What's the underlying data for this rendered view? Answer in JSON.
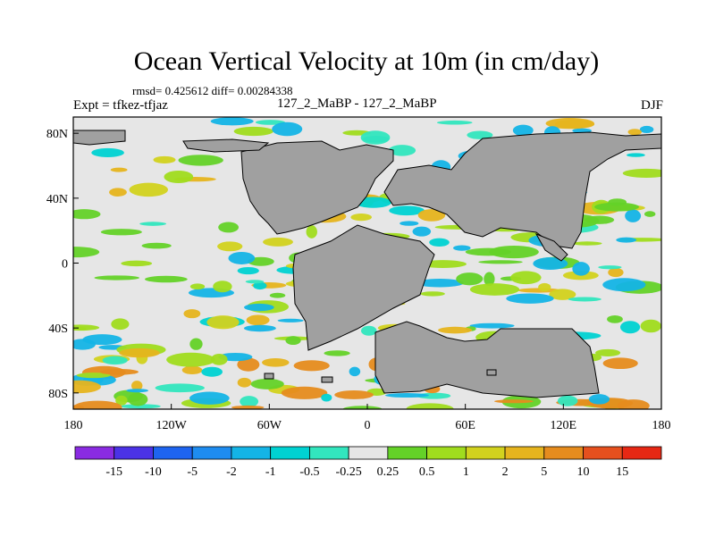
{
  "header": {
    "title": "Ocean Vertical Velocity at 10m (in cm/day)",
    "stats": "rmsd= 0.425612 diff= 0.00284338",
    "expt": "Expt = tfkez-tfjaz",
    "expname": "127_2_MaBP - 127_2_MaBP",
    "season": "DJF"
  },
  "map": {
    "lat_range": [
      -90,
      90
    ],
    "lon_range": [
      -180,
      180
    ],
    "land_color": "#a0a0a0",
    "ocean_background": "#e6e6e6",
    "lat_ticks": [
      {
        "value": 80,
        "label": "80N"
      },
      {
        "value": 40,
        "label": "40N"
      },
      {
        "value": 0,
        "label": "0"
      },
      {
        "value": -40,
        "label": "40S"
      },
      {
        "value": -80,
        "label": "80S"
      }
    ],
    "lon_ticks": [
      {
        "value": -180,
        "label": "180"
      },
      {
        "value": -120,
        "label": "120W"
      },
      {
        "value": -60,
        "label": "60W"
      },
      {
        "value": 0,
        "label": "0"
      },
      {
        "value": 60,
        "label": "60E"
      },
      {
        "value": 120,
        "label": "120E"
      },
      {
        "value": 180,
        "label": "180"
      }
    ]
  },
  "colorbar": {
    "colors": [
      "#8a2be2",
      "#4b32e6",
      "#1e64f0",
      "#1e8cf0",
      "#14b4e6",
      "#00d2d2",
      "#32e6be",
      "#e6e6e6",
      "#64d228",
      "#a0dc1e",
      "#d2d21e",
      "#e6b41e",
      "#e68c1e",
      "#e6501e",
      "#e62814"
    ],
    "labels": [
      "-15",
      "-10",
      "-5",
      "-2",
      "-1",
      "-0.5",
      "-0.25",
      "0.25",
      "0.5",
      "1",
      "2",
      "5",
      "10",
      "15"
    ]
  }
}
